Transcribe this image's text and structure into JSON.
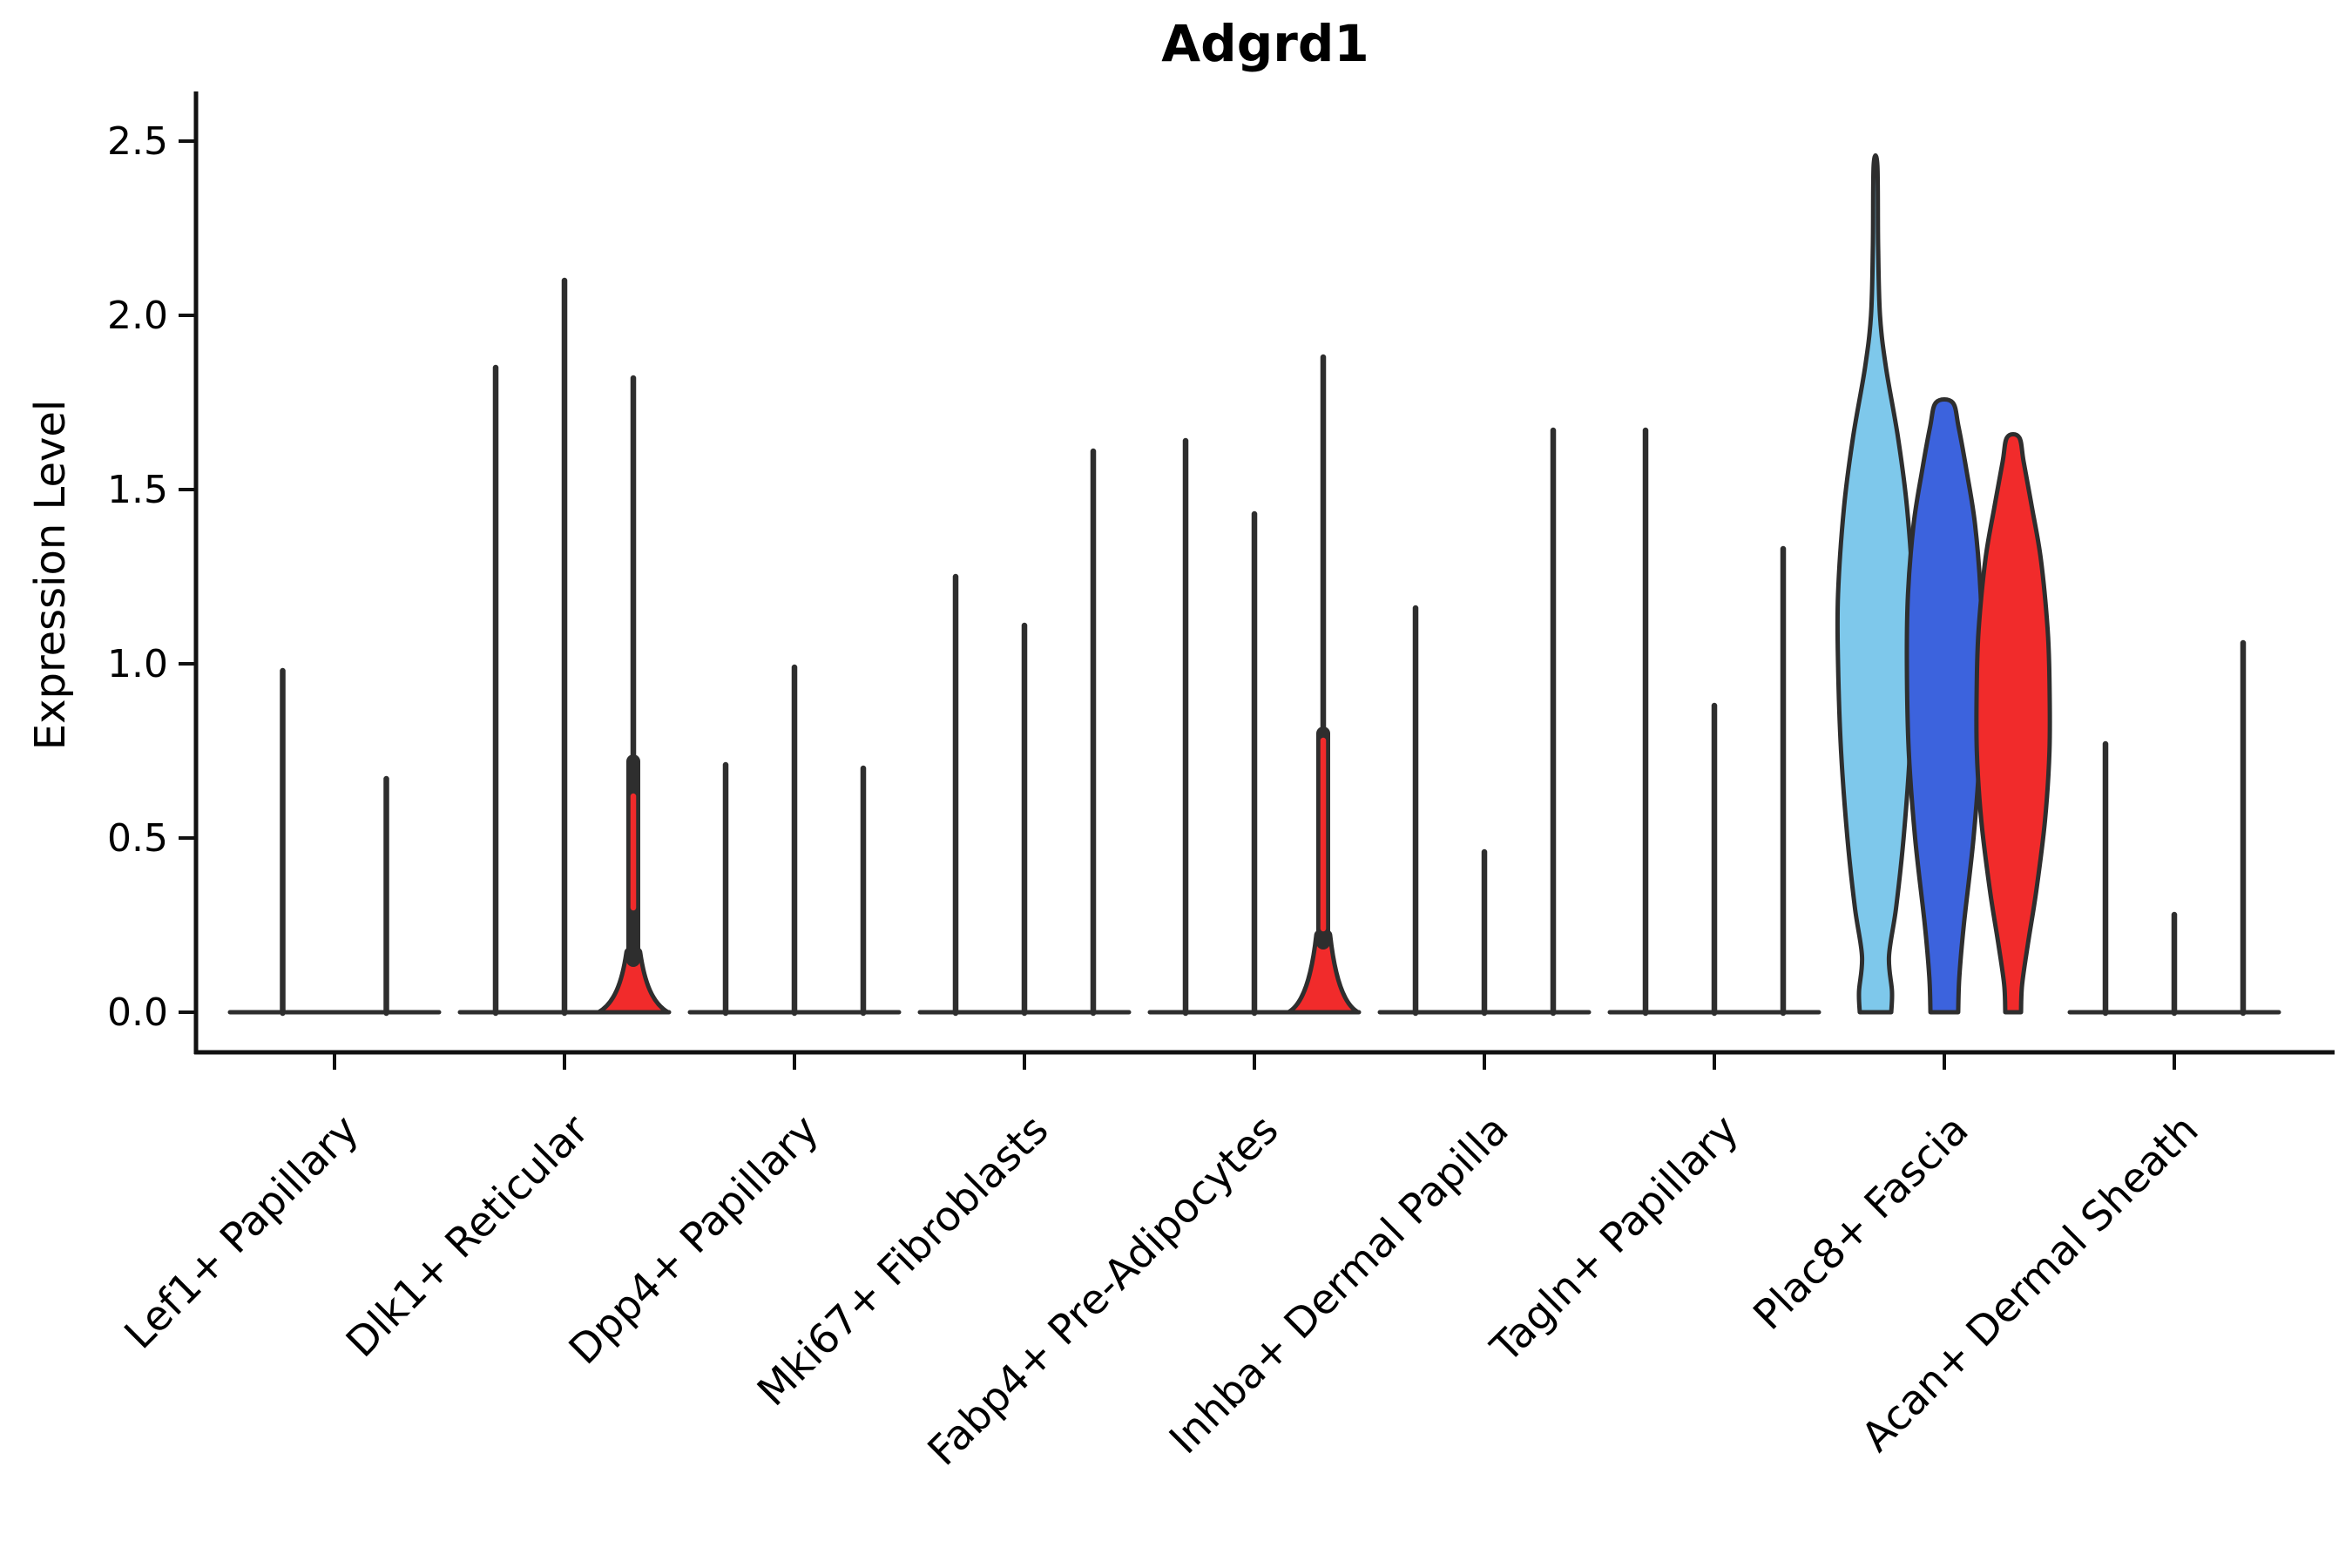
{
  "figure": {
    "background": "#ffffff"
  },
  "chart_data": {
    "type": "violin",
    "title": "Adgrd1",
    "ylabel": "Expression Level",
    "xlabel": "",
    "ylim": [
      0,
      2.5
    ],
    "yticks": [
      "0.0",
      "0.5",
      "1.0",
      "1.5",
      "2.0",
      "2.5"
    ],
    "grid": false,
    "legend": "none",
    "categories": [
      "Lef1+ Papillary",
      "Dlk1+ Reticular",
      "Dpp4+ Papillary",
      "Mki67+ Fibroblasts",
      "Fabp4+ Pre-Adipocytes",
      "Inhba+ Dermal Papilla",
      "Tagln+ Papillary",
      "Plac8+ Fascia",
      "Acan+ Dermal Sheath"
    ],
    "groups": [
      {
        "category": "Lef1+ Papillary",
        "violins": [
          {
            "kind": "spike",
            "max": 0.98
          },
          {
            "kind": "spike",
            "max": 0.67
          }
        ]
      },
      {
        "category": "Dlk1+ Reticular",
        "violins": [
          {
            "kind": "spike",
            "max": 1.85
          },
          {
            "kind": "spike",
            "max": 2.1
          },
          {
            "kind": "spike-red",
            "max": 1.82,
            "bell_top": 0.17,
            "neck_top": 0.72,
            "red_core": [
              0.3,
              0.62
            ]
          }
        ]
      },
      {
        "category": "Dpp4+ Papillary",
        "violins": [
          {
            "kind": "spike",
            "max": 0.71
          },
          {
            "kind": "spike",
            "max": 0.99
          },
          {
            "kind": "spike",
            "max": 0.7
          }
        ]
      },
      {
        "category": "Mki67+ Fibroblasts",
        "violins": [
          {
            "kind": "spike",
            "max": 1.25
          },
          {
            "kind": "spike",
            "max": 1.11
          },
          {
            "kind": "spike",
            "max": 1.61
          }
        ]
      },
      {
        "category": "Fabp4+ Pre-Adipocytes",
        "violins": [
          {
            "kind": "spike",
            "max": 1.64
          },
          {
            "kind": "spike",
            "max": 1.43
          },
          {
            "kind": "spike-red",
            "max": 1.88,
            "bell_top": 0.22,
            "neck_top": 0.8,
            "red_core": [
              0.24,
              0.78
            ]
          }
        ]
      },
      {
        "category": "Inhba+ Dermal Papilla",
        "violins": [
          {
            "kind": "spike",
            "max": 1.16
          },
          {
            "kind": "spike",
            "max": 0.46
          },
          {
            "kind": "spike",
            "max": 1.67
          }
        ]
      },
      {
        "category": "Tagln+ Papillary",
        "violins": [
          {
            "kind": "spike",
            "max": 1.67
          },
          {
            "kind": "spike",
            "max": 0.88
          },
          {
            "kind": "spike",
            "max": 1.33
          }
        ]
      },
      {
        "category": "Plac8+ Fascia",
        "violins": [
          {
            "kind": "filled",
            "max": 2.43,
            "color_key": "skyblue",
            "profile": [
              [
                0,
                0.42
              ],
              [
                0.06,
                0.44
              ],
              [
                0.16,
                0.36
              ],
              [
                0.3,
                0.55
              ],
              [
                0.5,
                0.75
              ],
              [
                0.75,
                0.92
              ],
              [
                1.0,
                1.0
              ],
              [
                1.2,
                1.0
              ],
              [
                1.45,
                0.84
              ],
              [
                1.65,
                0.6
              ],
              [
                1.85,
                0.28
              ],
              [
                2.0,
                0.12
              ],
              [
                2.2,
                0.07
              ],
              [
                2.43,
                0.05
              ]
            ]
          },
          {
            "kind": "filled",
            "max": 1.75,
            "color_key": "royalblue",
            "profile": [
              [
                0,
                0.37
              ],
              [
                0.1,
                0.4
              ],
              [
                0.25,
                0.52
              ],
              [
                0.5,
                0.78
              ],
              [
                0.75,
                0.95
              ],
              [
                1.0,
                1.0
              ],
              [
                1.2,
                0.97
              ],
              [
                1.4,
                0.82
              ],
              [
                1.55,
                0.6
              ],
              [
                1.68,
                0.38
              ],
              [
                1.75,
                0.22
              ]
            ]
          },
          {
            "kind": "filled",
            "max": 1.65,
            "color_key": "red",
            "profile": [
              [
                0,
                0.21
              ],
              [
                0.08,
                0.24
              ],
              [
                0.2,
                0.4
              ],
              [
                0.35,
                0.62
              ],
              [
                0.55,
                0.85
              ],
              [
                0.75,
                0.97
              ],
              [
                0.95,
                0.97
              ],
              [
                1.1,
                0.92
              ],
              [
                1.3,
                0.74
              ],
              [
                1.45,
                0.5
              ],
              [
                1.58,
                0.28
              ],
              [
                1.65,
                0.16
              ]
            ]
          }
        ]
      },
      {
        "category": "Acan+ Dermal Sheath",
        "violins": [
          {
            "kind": "spike",
            "max": 0.77
          },
          {
            "kind": "spike",
            "max": 0.28
          },
          {
            "kind": "spike",
            "max": 1.06
          }
        ]
      }
    ],
    "colors": {
      "outline": "#2e2e2e",
      "axis": "#111111",
      "red": "#f12b2b",
      "skyblue": "#7ec8eb",
      "royalblue": "#3c63dd"
    }
  }
}
